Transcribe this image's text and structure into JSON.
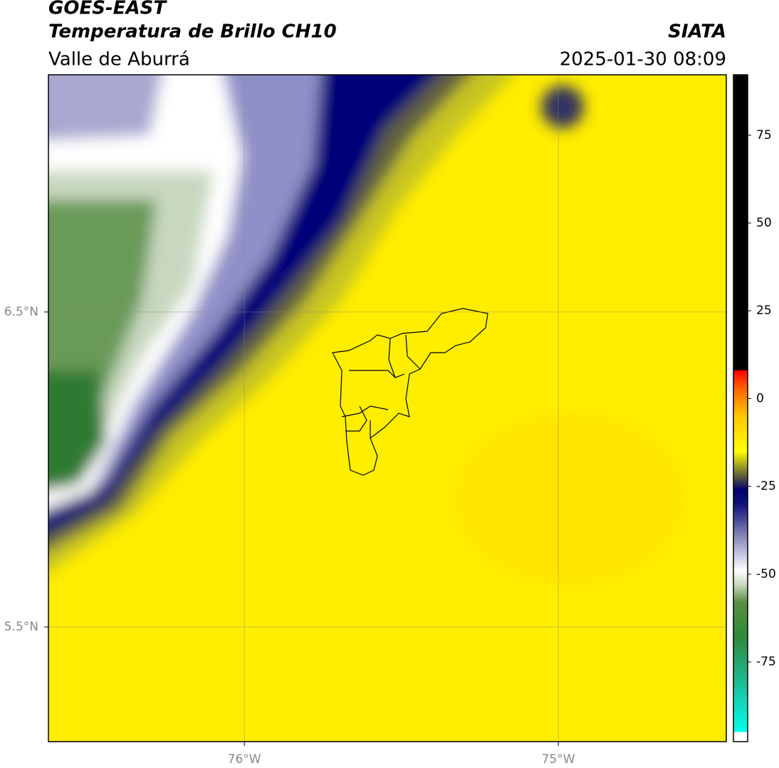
{
  "chart_data": {
    "type": "map",
    "title": "GOES-EAST",
    "subtitle": "Temperatura de Brillo CH10",
    "region": "Valle de Aburrá",
    "source": "SIATA",
    "datetime": "2025-01-30 08:09",
    "xlim": [
      -76.624,
      -74.465
    ],
    "ylim": [
      5.136,
      7.253
    ],
    "xticks": [
      {
        "value": -76,
        "label": "76°W"
      },
      {
        "value": -75,
        "label": "75°W"
      }
    ],
    "yticks": [
      {
        "value": 6.5,
        "label": "6.5°N"
      },
      {
        "value": 5.5,
        "label": "5.5°N"
      }
    ],
    "grid": true,
    "clim": [
      -97.7,
      92.2
    ],
    "cticks": [
      75,
      50,
      25,
      0,
      -25,
      -50,
      -75
    ],
    "colormap": [
      {
        "value": -97.7,
        "color": "#ffffff"
      },
      {
        "value": -95,
        "color": "#ffffff"
      },
      {
        "value": -94.9,
        "color": "#00ffee"
      },
      {
        "value": -80,
        "color": "#20b890"
      },
      {
        "value": -68,
        "color": "#2e8a3a"
      },
      {
        "value": -58,
        "color": "#5a9040"
      },
      {
        "value": -53,
        "color": "#c8d8c0"
      },
      {
        "value": -49,
        "color": "#ffffff"
      },
      {
        "value": -40,
        "color": "#9090c0"
      },
      {
        "value": -30,
        "color": "#10107a"
      },
      {
        "value": -26,
        "color": "#000070"
      },
      {
        "value": -22,
        "color": "#60603a"
      },
      {
        "value": -15,
        "color": "#ffff00"
      },
      {
        "value": -5,
        "color": "#ffc800"
      },
      {
        "value": 3,
        "color": "#ff6000"
      },
      {
        "value": 8,
        "color": "#ff0000"
      },
      {
        "value": 8.1,
        "color": "#000000"
      },
      {
        "value": 92.2,
        "color": "#000000"
      }
    ]
  }
}
